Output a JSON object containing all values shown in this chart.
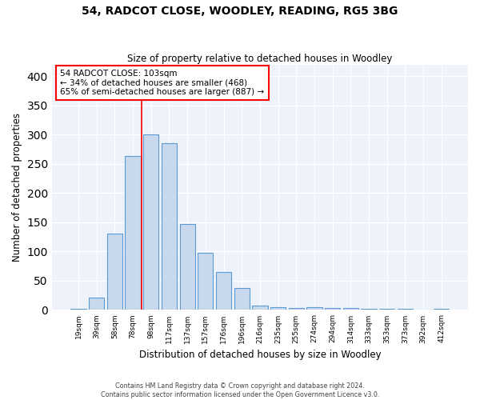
{
  "title": "54, RADCOT CLOSE, WOODLEY, READING, RG5 3BG",
  "subtitle": "Size of property relative to detached houses in Woodley",
  "xlabel": "Distribution of detached houses by size in Woodley",
  "ylabel": "Number of detached properties",
  "bar_color": "#c9d9ed",
  "bar_edge_color": "#5b9bd5",
  "background_color": "#eef2fa",
  "grid_color": "#ffffff",
  "categories": [
    "19sqm",
    "39sqm",
    "58sqm",
    "78sqm",
    "98sqm",
    "117sqm",
    "137sqm",
    "157sqm",
    "176sqm",
    "196sqm",
    "216sqm",
    "235sqm",
    "255sqm",
    "274sqm",
    "294sqm",
    "314sqm",
    "333sqm",
    "353sqm",
    "373sqm",
    "392sqm",
    "412sqm"
  ],
  "values": [
    2,
    21,
    130,
    263,
    300,
    285,
    147,
    98,
    65,
    37,
    8,
    5,
    4,
    5,
    4,
    3,
    2,
    2,
    2,
    0,
    2
  ],
  "ylim": [
    0,
    420
  ],
  "yticks": [
    0,
    50,
    100,
    150,
    200,
    250,
    300,
    350,
    400
  ],
  "marker_bin_index": 4,
  "marker_color": "red",
  "annotation_text": "54 RADCOT CLOSE: 103sqm\n← 34% of detached houses are smaller (468)\n65% of semi-detached houses are larger (887) →",
  "annotation_box_color": "white",
  "annotation_box_edge_color": "red",
  "footer_line1": "Contains HM Land Registry data © Crown copyright and database right 2024.",
  "footer_line2": "Contains public sector information licensed under the Open Government Licence v3.0."
}
